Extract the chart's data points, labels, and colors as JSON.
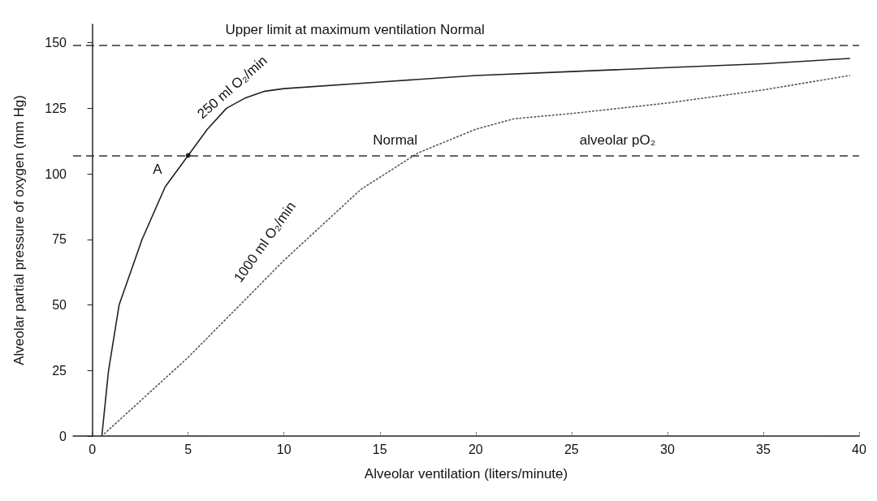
{
  "chart_data": {
    "type": "line",
    "xlabel": "Alveolar ventilation (liters/minute)",
    "ylabel": "Alveolar partial pressure of oxygen (mm Hg)",
    "xlim": [
      -1,
      40
    ],
    "xticks": [
      0,
      5,
      10,
      15,
      20,
      25,
      30,
      35,
      40
    ],
    "ylim": [
      0,
      157
    ],
    "yticks": [
      0,
      25,
      50,
      75,
      100,
      125,
      150
    ],
    "grid": false,
    "marker": "none",
    "series": [
      {
        "color": "#222222",
        "line_style": "solid",
        "x": [
          0.5,
          0.85,
          1.4,
          2.6,
          3.8,
          5,
          6,
          7,
          8,
          9,
          10,
          15,
          20,
          25,
          30,
          35,
          39.5
        ],
        "values": [
          0,
          25,
          50,
          75,
          95,
          107,
          117,
          125,
          129,
          131.5,
          132.5,
          135,
          137.5,
          139,
          140.5,
          142,
          144
        ]
      },
      {
        "color": "#555555",
        "line_style": "dotted",
        "x": [
          0.5,
          5,
          10,
          14,
          17,
          20,
          22,
          25,
          30,
          35,
          39.5
        ],
        "values": [
          0,
          30,
          67,
          94,
          108,
          117,
          121,
          123,
          127,
          132,
          137.5
        ]
      },
      {
        "type": "scatter",
        "marker": "circle",
        "color": "#000000",
        "x": [
          5
        ],
        "values": [
          107
        ]
      }
    ],
    "ref_lines": [
      {
        "axis": "y",
        "value": 149,
        "color": "#333333",
        "line_style": "dashed"
      },
      {
        "axis": "y",
        "value": 107,
        "color": "#333333",
        "line_style": "dashed"
      }
    ],
    "annotations": [
      "Upper limit at maximum ventilation Normal",
      "A",
      "Normal",
      "alveolar pO₂",
      "250 ml O₂/min",
      "1000 ml O₂/min"
    ]
  }
}
